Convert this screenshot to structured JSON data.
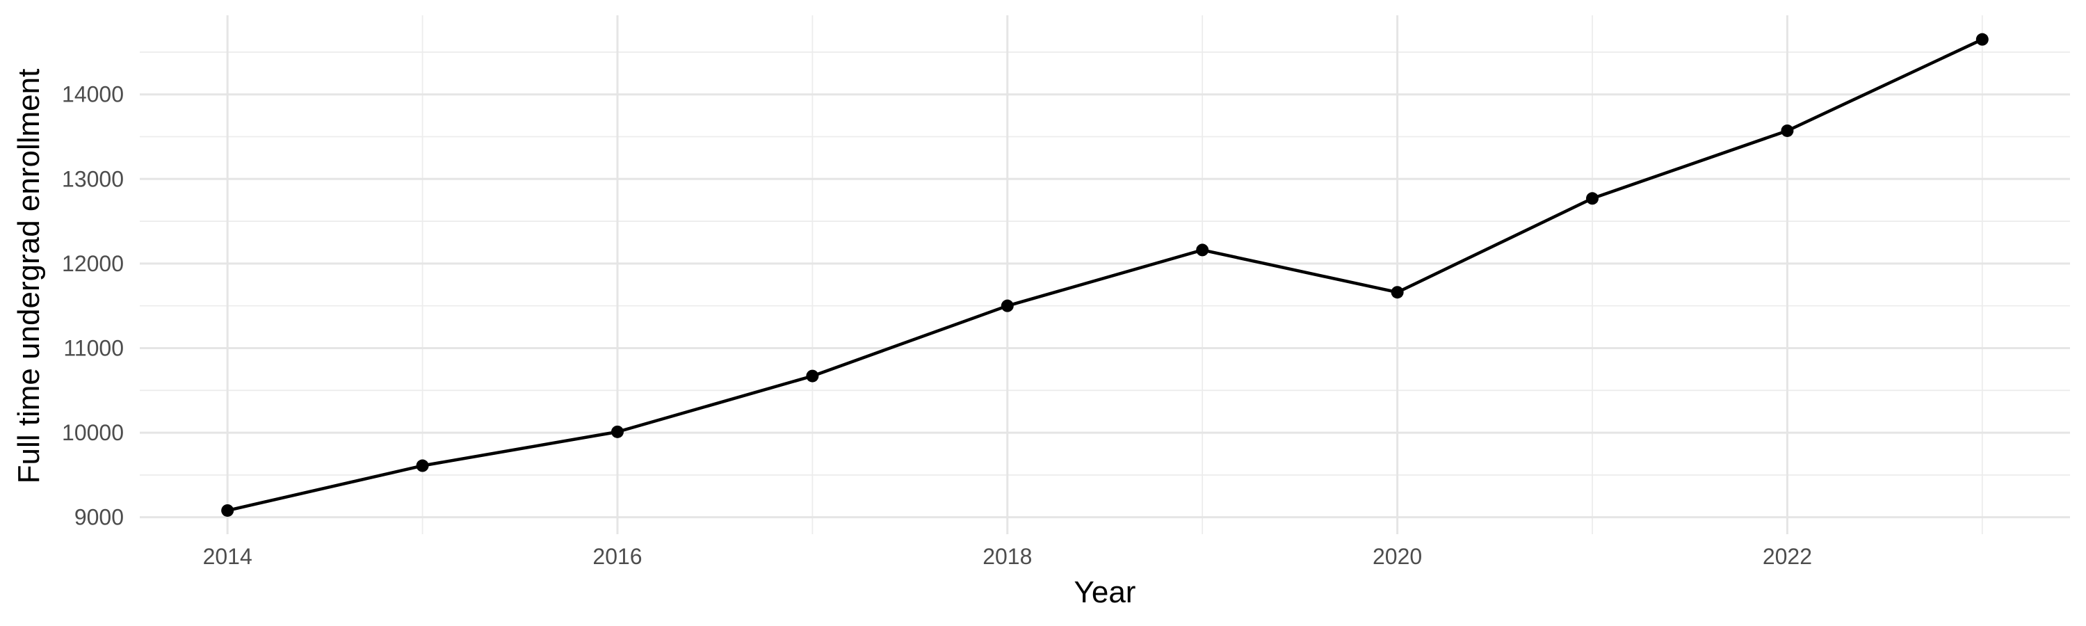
{
  "chart_data": {
    "type": "line",
    "title": "",
    "xlabel": "Year",
    "ylabel": "Full time undergrad enrollment",
    "x": [
      2014,
      2015,
      2016,
      2017,
      2018,
      2019,
      2020,
      2021,
      2022,
      2023
    ],
    "series": [
      {
        "name": "Full time undergrad enrollment",
        "values": [
          9080,
          9610,
          10010,
          10670,
          11500,
          12160,
          11660,
          12770,
          13570,
          14650
        ]
      }
    ],
    "x_major_ticks": [
      2014,
      2016,
      2018,
      2020,
      2022
    ],
    "x_tick_labels": [
      "2014",
      "2016",
      "2018",
      "2020",
      "2022"
    ],
    "x_minor_gridlines": [
      2015,
      2017,
      2019,
      2021,
      2023
    ],
    "y_major_ticks": [
      9000,
      10000,
      11000,
      12000,
      13000,
      14000
    ],
    "y_tick_labels": [
      "9000",
      "10000",
      "11000",
      "12000",
      "13000",
      "14000"
    ],
    "y_minor_gridlines": [
      9500,
      10500,
      11500,
      12500,
      13500,
      14500
    ],
    "xlim": [
      2013.55,
      2023.45
    ],
    "ylim": [
      8800,
      14935
    ],
    "grid": true,
    "legend": false,
    "marker": "filled-circle",
    "colors": {
      "background": "#FFFFFF",
      "grid_major": "#E5E5E5",
      "grid_minor": "#ECECEC",
      "line": "#000000",
      "point": "#000000",
      "tick_label": "#4D4D4D",
      "axis_title": "#000000"
    }
  }
}
